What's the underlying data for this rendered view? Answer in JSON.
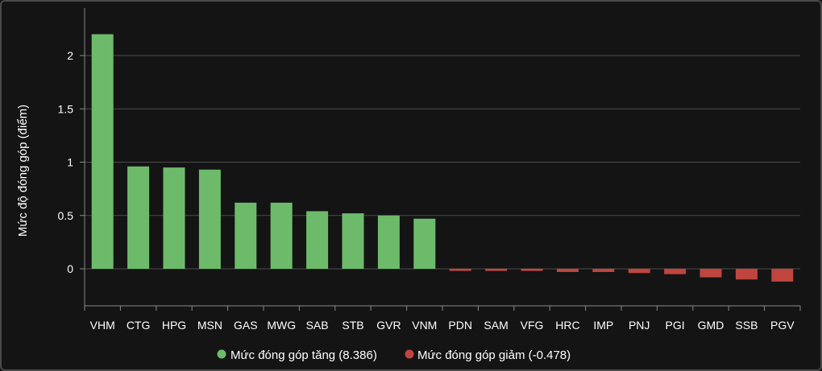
{
  "chart_data": {
    "type": "bar",
    "ylabel": "Mức độ đóng góp (điểm)",
    "ylim": [
      -0.35,
      2.45
    ],
    "yticks": [
      0,
      0.5,
      1,
      1.5,
      2
    ],
    "ytick_labels": [
      "0",
      "0.5",
      "1",
      "1.5",
      "2"
    ],
    "grid": true,
    "legend_position": "bottom-center",
    "categories": [
      "VHM",
      "CTG",
      "HPG",
      "MSN",
      "GAS",
      "MWG",
      "SAB",
      "STB",
      "GVR",
      "VNM",
      "PDN",
      "SAM",
      "VFG",
      "HRC",
      "IMP",
      "PNJ",
      "PGI",
      "GMD",
      "SSB",
      "PGV"
    ],
    "series": [
      {
        "name": "Mức đóng góp tăng (8.386)",
        "color": "#6dbb6a",
        "values": [
          2.2,
          0.96,
          0.95,
          0.93,
          0.62,
          0.62,
          0.54,
          0.52,
          0.5,
          0.47,
          null,
          null,
          null,
          null,
          null,
          null,
          null,
          null,
          null,
          null
        ]
      },
      {
        "name": "Mức đóng góp giảm (-0.478)",
        "color": "#c0453f",
        "values": [
          null,
          null,
          null,
          null,
          null,
          null,
          null,
          null,
          null,
          null,
          -0.02,
          -0.02,
          -0.02,
          -0.03,
          -0.03,
          -0.04,
          -0.05,
          -0.08,
          -0.1,
          -0.12
        ]
      }
    ]
  }
}
